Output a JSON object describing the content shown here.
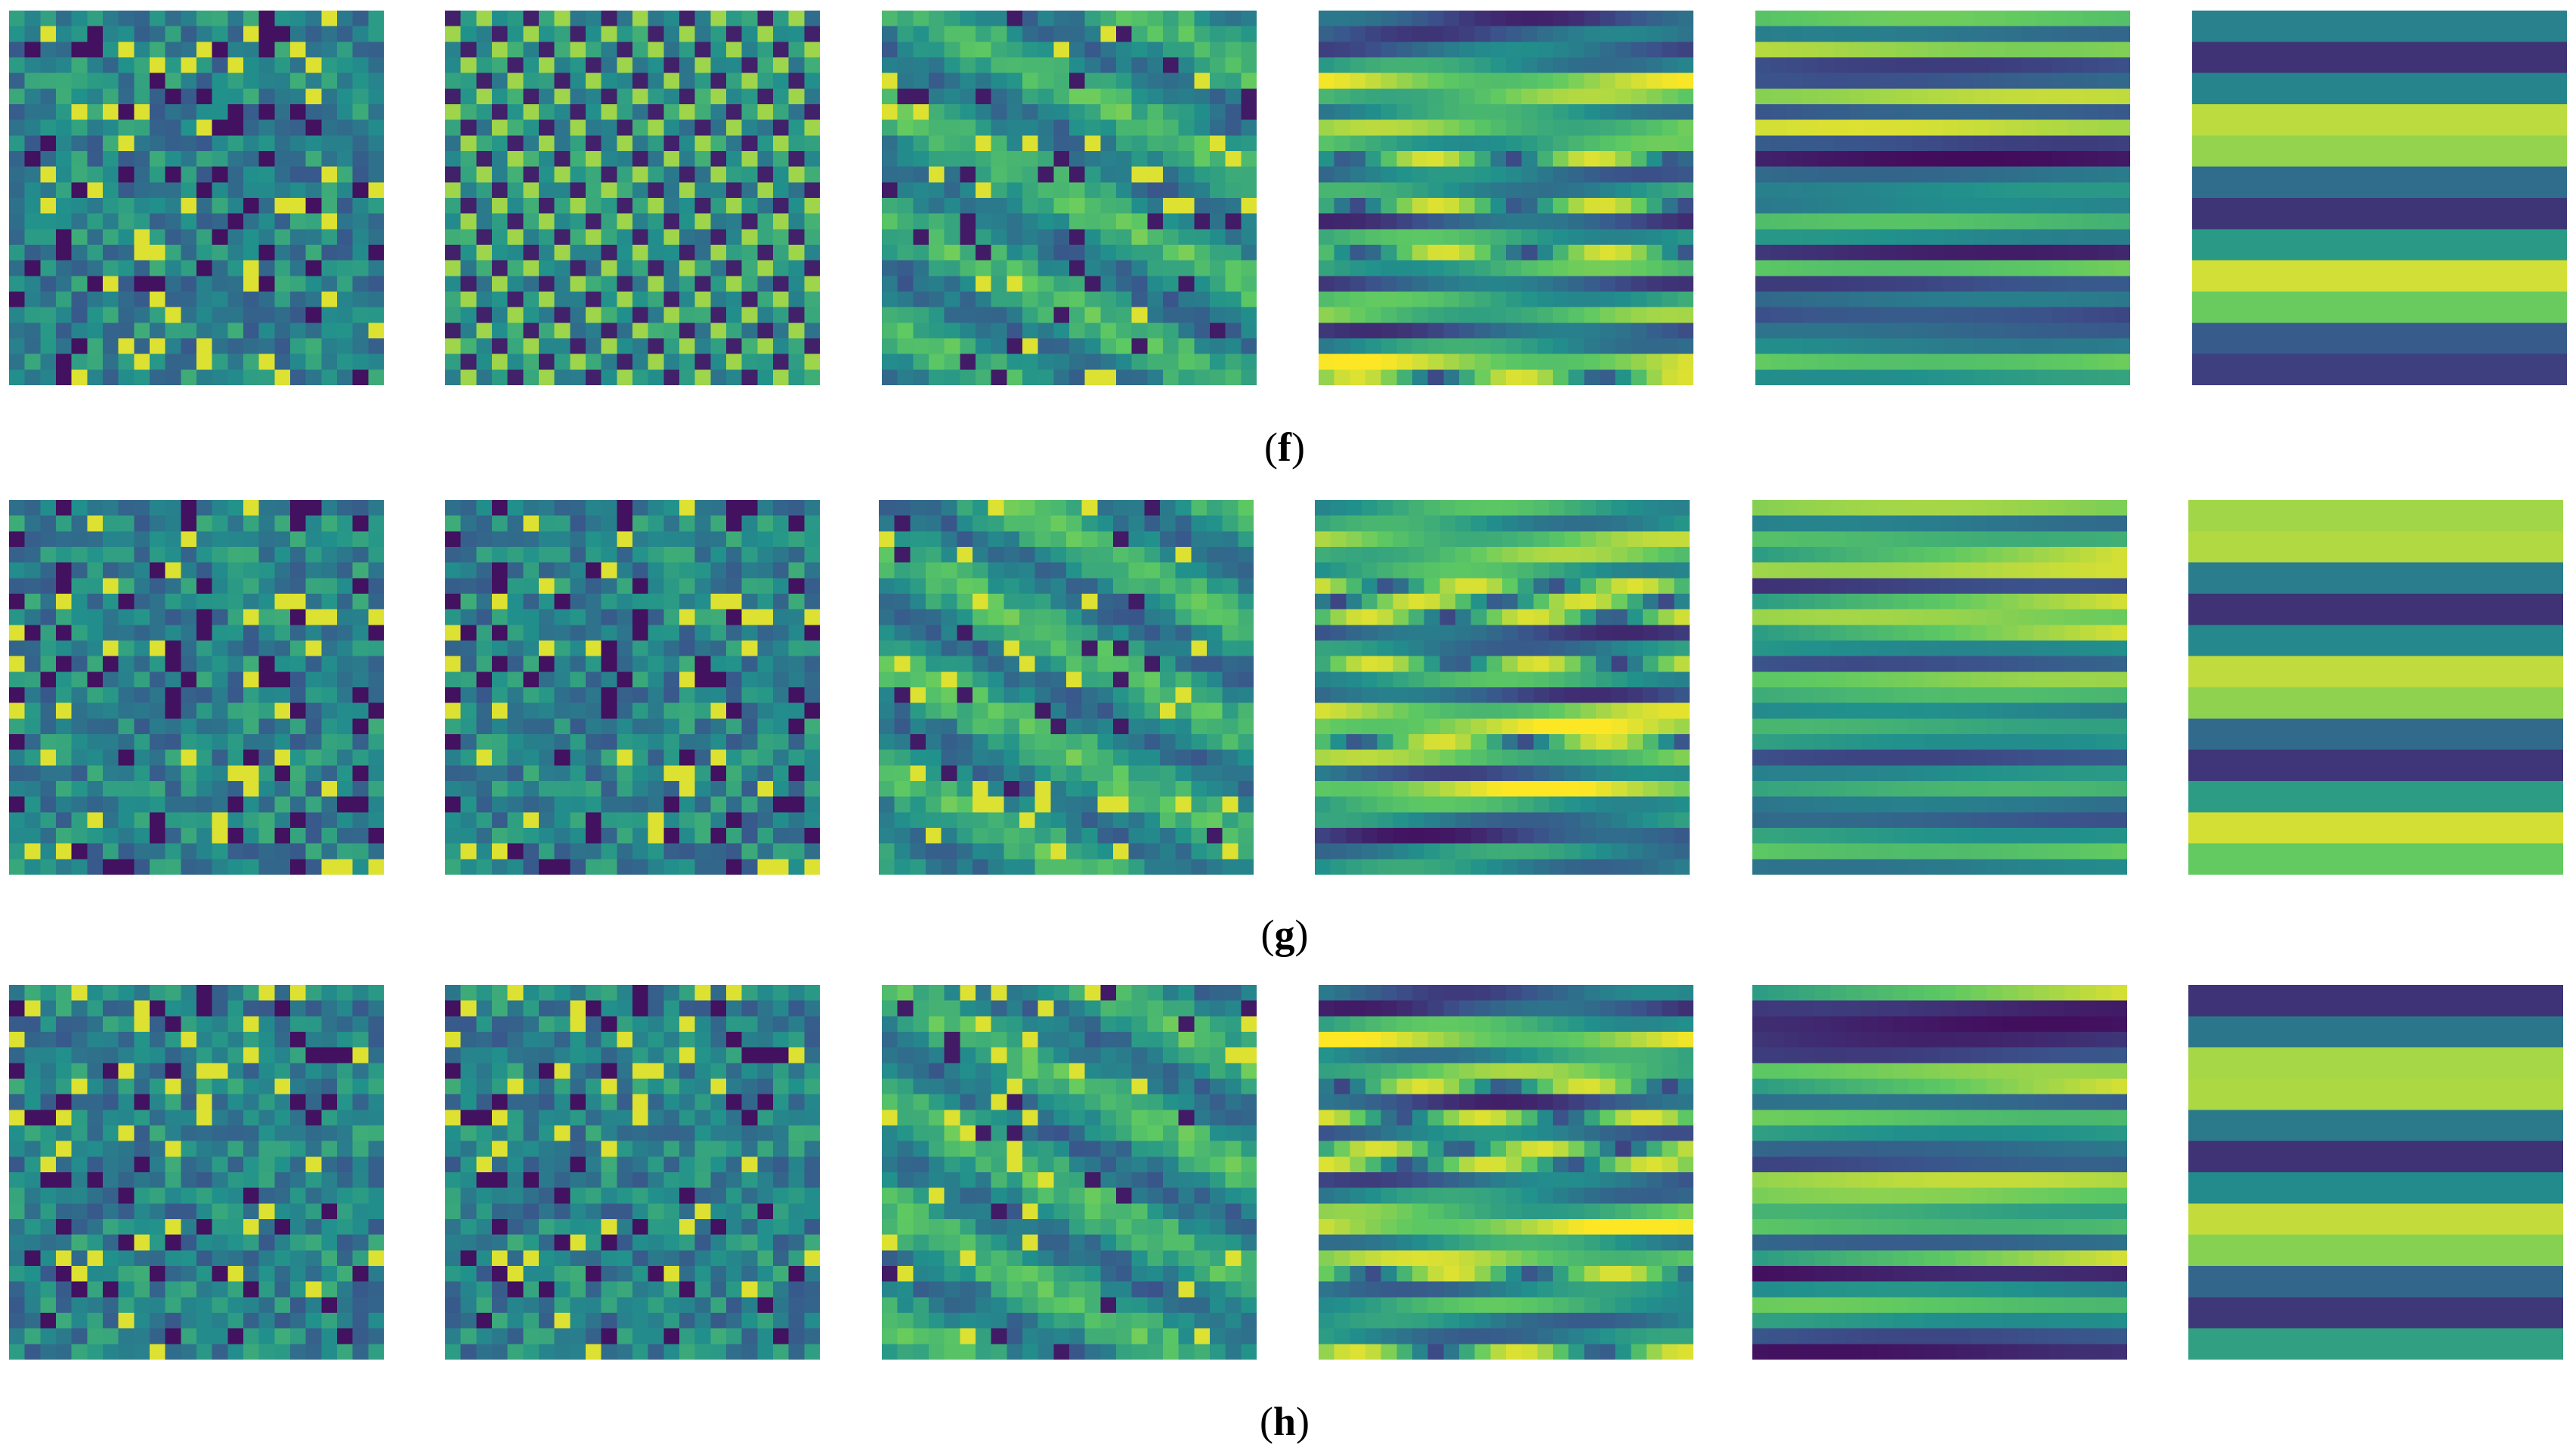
{
  "chart_data": [
    {
      "type": "heatmap",
      "panel": "f",
      "caption_open": "(",
      "caption_letter": "f",
      "caption_close": ")",
      "grid": {
        "rows": 24,
        "cols": 24
      },
      "colormap": "viridis",
      "colormap_stops": [
        "#440154",
        "#3b528b",
        "#21918c",
        "#5ec962",
        "#fde725"
      ],
      "tiles": [
        {
          "pattern": "pixel-noise",
          "seed": 11
        },
        {
          "pattern": "pixel-diagonal",
          "seed": 12
        },
        {
          "pattern": "diagonal-streak",
          "seed": 13
        },
        {
          "pattern": "horizontal-streak",
          "seed": 14
        },
        {
          "pattern": "horizontal-band",
          "seed": 15
        },
        {
          "pattern": "broad-band",
          "seed": 16
        }
      ]
    },
    {
      "type": "heatmap",
      "panel": "g",
      "caption_open": "(",
      "caption_letter": "g",
      "caption_close": ")",
      "grid": {
        "rows": 24,
        "cols": 24
      },
      "colormap": "viridis",
      "colormap_stops": [
        "#440154",
        "#3b528b",
        "#21918c",
        "#5ec962",
        "#fde725"
      ],
      "tiles": [
        {
          "pattern": "pixel-noise",
          "seed": 21
        },
        {
          "pattern": "pixel-noise",
          "seed": 21
        },
        {
          "pattern": "diagonal-streak",
          "seed": 23
        },
        {
          "pattern": "horizontal-streak",
          "seed": 24
        },
        {
          "pattern": "horizontal-band",
          "seed": 25
        },
        {
          "pattern": "broad-band",
          "seed": 26
        }
      ]
    },
    {
      "type": "heatmap",
      "panel": "h",
      "caption_open": "(",
      "caption_letter": "h",
      "caption_close": ")",
      "grid": {
        "rows": 24,
        "cols": 24
      },
      "colormap": "viridis",
      "colormap_stops": [
        "#440154",
        "#3b528b",
        "#21918c",
        "#5ec962",
        "#fde725"
      ],
      "tiles": [
        {
          "pattern": "pixel-noise",
          "seed": 31
        },
        {
          "pattern": "pixel-noise",
          "seed": 31
        },
        {
          "pattern": "diagonal-streak",
          "seed": 33
        },
        {
          "pattern": "horizontal-streak",
          "seed": 34
        },
        {
          "pattern": "horizontal-band",
          "seed": 35
        },
        {
          "pattern": "broad-band",
          "seed": 36
        }
      ]
    }
  ]
}
